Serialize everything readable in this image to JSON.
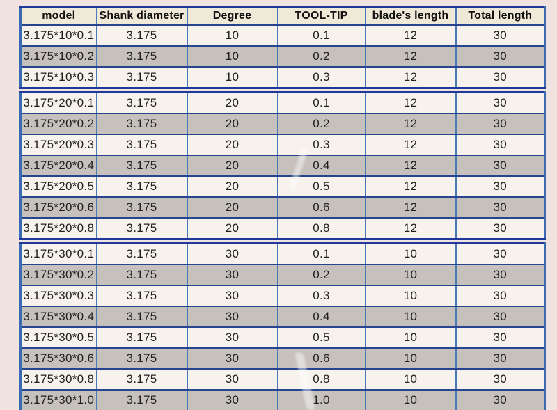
{
  "page": {
    "background_color": "#f1e3df",
    "row_white_color": "#f7f3ec",
    "row_gray_color": "#c6c1bc",
    "header_bg_color": "#efe9d8",
    "border_blue_color": "#4a79b8",
    "border_navy_color": "#27458f"
  },
  "table": {
    "columns": [
      "model",
      "Shank diameter",
      "Degree",
      "TOOL-TIP",
      "blade's length",
      "Total length"
    ],
    "column_keys": [
      "model",
      "shank-diameter",
      "degree",
      "tool-tip",
      "blades-length",
      "total-length"
    ],
    "groups": [
      {
        "rows": [
          [
            "3.175*10*0.1",
            "3.175",
            "10",
            "0.1",
            "12",
            "30"
          ],
          [
            "3.175*10*0.2",
            "3.175",
            "10",
            "0.2",
            "12",
            "30"
          ],
          [
            "3.175*10*0.3",
            "3.175",
            "10",
            "0.3",
            "12",
            "30"
          ]
        ]
      },
      {
        "rows": [
          [
            "3.175*20*0.1",
            "3.175",
            "20",
            "0.1",
            "12",
            "30"
          ],
          [
            "3.175*20*0.2",
            "3.175",
            "20",
            "0.2",
            "12",
            "30"
          ],
          [
            "3.175*20*0.3",
            "3.175",
            "20",
            "0.3",
            "12",
            "30"
          ],
          [
            "3.175*20*0.4",
            "3.175",
            "20",
            "0.4",
            "12",
            "30"
          ],
          [
            "3.175*20*0.5",
            "3.175",
            "20",
            "0.5",
            "12",
            "30"
          ],
          [
            "3.175*20*0.6",
            "3.175",
            "20",
            "0.6",
            "12",
            "30"
          ],
          [
            "3.175*20*0.8",
            "3.175",
            "20",
            "0.8",
            "12",
            "30"
          ]
        ]
      },
      {
        "rows": [
          [
            "3.175*30*0.1",
            "3.175",
            "30",
            "0.1",
            "10",
            "30"
          ],
          [
            "3.175*30*0.2",
            "3.175",
            "30",
            "0.2",
            "10",
            "30"
          ],
          [
            "3.175*30*0.3",
            "3.175",
            "30",
            "0.3",
            "10",
            "30"
          ],
          [
            "3.175*30*0.4",
            "3.175",
            "30",
            "0.4",
            "10",
            "30"
          ],
          [
            "3.175*30*0.5",
            "3.175",
            "30",
            "0.5",
            "10",
            "30"
          ],
          [
            "3.175*30*0.6",
            "3.175",
            "30",
            "0.6",
            "10",
            "30"
          ],
          [
            "3.175*30*0.8",
            "3.175",
            "30",
            "0.8",
            "10",
            "30"
          ],
          [
            "3.175*30*1.0",
            "3.175",
            "30",
            "1.0",
            "10",
            "30"
          ]
        ]
      }
    ]
  }
}
